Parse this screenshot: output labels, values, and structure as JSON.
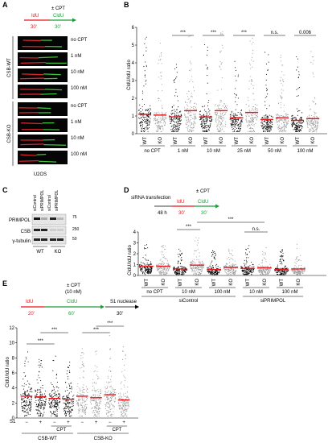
{
  "panels": {
    "A": {
      "label": "A",
      "treatment": "± CPT",
      "pulse1": {
        "label": "IdU",
        "time": "30'"
      },
      "pulse2": {
        "label": "CldU",
        "time": "30'"
      },
      "groups": [
        {
          "label": "CSB-WT",
          "rows": [
            "no CPT",
            "1 nM",
            "10 nM",
            "100 nM"
          ]
        },
        {
          "label": "CSB-KO",
          "rows": [
            "no CPT",
            "1 nM",
            "10 nM",
            "100 nM"
          ]
        }
      ],
      "cell_line": "U2OS"
    },
    "B": {
      "label": "B",
      "ylabel": "CldU/IdU ratio",
      "conditions": [
        "no CPT",
        "1 nM",
        "10 nM",
        "25 nM",
        "50 nM",
        "100 nM"
      ],
      "genotypes": [
        "WT",
        "KO"
      ],
      "significance": [
        "***",
        "***",
        "***",
        "n.s.",
        "0.006"
      ]
    },
    "C": {
      "label": "C",
      "lanes": [
        "siControl",
        "siPRIMPOL",
        "siControl",
        "siPRIMPOL"
      ],
      "genotypes": [
        "WT",
        "KO"
      ],
      "proteins": [
        "PRIMPOL",
        "CSB",
        "γ-tubulin"
      ],
      "markers": [
        "75",
        "250",
        "50"
      ]
    },
    "D": {
      "label": "D",
      "treatment": "± CPT",
      "step1": "siRNA transfection",
      "step1_time": "48 h",
      "pulse1": {
        "label": "IdU",
        "time": "30'"
      },
      "pulse2": {
        "label": "CldU",
        "time": "30'"
      },
      "ylabel": "CldU/IdU ratio",
      "conditions": [
        "no CPT",
        "10 nM",
        "100 nM",
        "10 nM",
        "100 nM"
      ],
      "genotypes": [
        "WT",
        "KO"
      ],
      "sirna_groups": [
        "siControl",
        "siPRIMPOL"
      ],
      "significance": [
        "***",
        "***",
        "n.s."
      ]
    },
    "E": {
      "label": "E",
      "treatment": "± CPT",
      "treatment_conc": "(10 nM)",
      "pulse1": {
        "label": "IdU",
        "time": "20'"
      },
      "pulse2": {
        "label": "CldU",
        "time": "60'"
      },
      "nuclease": {
        "label": "S1 nuclease",
        "time": "30'"
      },
      "ylabel": "CldU/IdU ratio",
      "s1_label": "S1",
      "s1_signs": [
        "−",
        "+",
        "−",
        "+",
        "−",
        "+",
        "−",
        "+"
      ],
      "cpt_label": "CPT",
      "cell_groups": [
        "CSB-WT",
        "CSB-KO"
      ],
      "significance": [
        "***",
        "***",
        "***",
        "***"
      ]
    }
  },
  "chart_data": [
    {
      "type": "scatter",
      "panel": "B",
      "ylabel": "CldU/IdU ratio",
      "ylim": [
        0,
        6
      ],
      "yticks": [
        "0",
        "1",
        "2",
        "3",
        "4",
        "5",
        "6"
      ],
      "categories": [
        "WT no CPT",
        "KO no CPT",
        "WT 1 nM",
        "KO 1 nM",
        "WT 10 nM",
        "KO 10 nM",
        "WT 25 nM",
        "KO 25 nM",
        "WT 50 nM",
        "KO 50 nM",
        "WT 100 nM",
        "KO 100 nM"
      ],
      "medians": [
        1.1,
        1.05,
        0.95,
        1.3,
        0.95,
        1.3,
        0.9,
        1.2,
        0.8,
        0.9,
        0.75,
        0.85
      ],
      "maxima": [
        5.5,
        5.2,
        4.0,
        5.7,
        5.2,
        5.8,
        4.2,
        5.5,
        5.0,
        5.0,
        4.6,
        5.0
      ],
      "series": [
        {
          "name": "WT",
          "color": "#000000"
        },
        {
          "name": "KO",
          "color": "#9a9a9a"
        }
      ],
      "median_color": "#e8141c"
    },
    {
      "type": "scatter",
      "panel": "D",
      "ylabel": "CldU/IdU ratio",
      "ylim": [
        0,
        4
      ],
      "yticks": [
        "0",
        "1",
        "2",
        "3",
        "4"
      ],
      "categories": [
        "WT no CPT",
        "KO no CPT",
        "WT 10 nM",
        "KO 10 nM",
        "WT 100 nM",
        "KO 100 nM",
        "WT 10 nM",
        "KO 10 nM",
        "WT 100 nM",
        "KO 100 nM"
      ],
      "medians": [
        0.85,
        0.85,
        0.6,
        0.95,
        0.55,
        0.75,
        0.65,
        0.7,
        0.55,
        0.6
      ],
      "maxima": [
        3.2,
        2.9,
        2.7,
        3.5,
        2.3,
        2.6,
        2.8,
        2.7,
        2.4,
        3.0
      ],
      "series": [
        {
          "name": "WT",
          "color": "#000000"
        },
        {
          "name": "KO",
          "color": "#9a9a9a"
        }
      ],
      "median_color": "#e8141c"
    },
    {
      "type": "scatter",
      "panel": "E",
      "ylabel": "CldU/IdU ratio",
      "ylim": [
        0,
        12
      ],
      "yticks": [
        "0",
        "2",
        "4",
        "6",
        "8",
        "10",
        "12"
      ],
      "categories": [
        "WT −S1",
        "WT +S1",
        "WT CPT −S1",
        "WT CPT +S1",
        "KO −S1",
        "KO +S1",
        "KO CPT −S1",
        "KO CPT +S1"
      ],
      "medians": [
        2.9,
        2.8,
        2.6,
        2.5,
        2.9,
        2.7,
        3.1,
        2.4
      ],
      "maxima": [
        9.0,
        8.0,
        9.0,
        7.5,
        9.5,
        9.0,
        11.0,
        9.5
      ],
      "series": [
        {
          "name": "CSB-WT",
          "color": "#000000"
        },
        {
          "name": "CSB-KO",
          "color": "#9a9a9a"
        }
      ],
      "median_color": "#e8141c"
    }
  ]
}
